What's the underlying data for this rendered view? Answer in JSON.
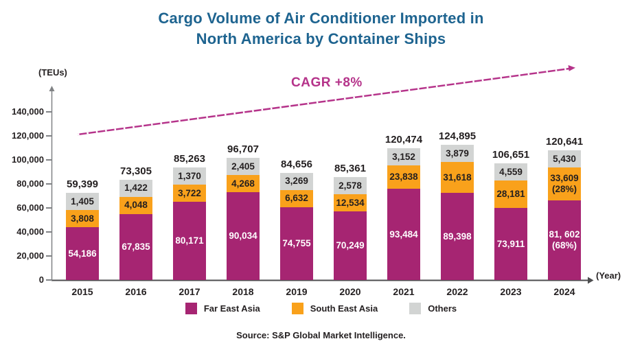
{
  "title": {
    "line1": "Cargo Volume of Air Conditioner Imported in",
    "line2": "North America by Container Ships"
  },
  "axes": {
    "y_unit_label": "(TEUs)",
    "x_unit_label": "(Year)"
  },
  "annotation": {
    "cagr_label": "CAGR +8%"
  },
  "source": "Source: S&P Global Market Intelligence.",
  "colors": {
    "title_blue": "#1E6490",
    "text_dark": "#231F20",
    "axis_gray": "#808285",
    "baseline_gray": "#4D4D4F",
    "cagr_magenta": "#B5338A",
    "far_east_asia": "#A62572",
    "south_east_asia": "#F9A11B",
    "others": "#D2D4D3"
  },
  "chart_data": {
    "type": "bar",
    "stacked": true,
    "title": "Cargo Volume of Air Conditioner Imported in North America by Container Ships",
    "xlabel": "Year",
    "ylabel": "TEUs",
    "ylim": [
      0,
      140000
    ],
    "grid": false,
    "legend_position": "bottom",
    "y_ticks": [
      "0",
      "20,000",
      "40,000",
      "60,000",
      "80,000",
      "100,000",
      "120,000",
      "140,000"
    ],
    "categories": [
      "2015",
      "2016",
      "2017",
      "2018",
      "2019",
      "2020",
      "2021",
      "2022",
      "2023",
      "2024"
    ],
    "series": [
      {
        "name": "Far East Asia",
        "color": "#A62572",
        "text_color": "#FFFFFF",
        "values": [
          54186,
          67835,
          80171,
          90034,
          74755,
          70249,
          93484,
          89398,
          73911,
          81602
        ],
        "labels": [
          "54,186",
          "67,835",
          "80,171",
          "90,034",
          "74,755",
          "70,249",
          "93,484",
          "89,398",
          "73,911",
          "81, 602\n(68%)"
        ]
      },
      {
        "name": "South East Asia",
        "color": "#F9A11B",
        "text_color": "#231F20",
        "values": [
          3808,
          4048,
          3722,
          4268,
          6632,
          12534,
          23838,
          31618,
          28181,
          33609
        ],
        "labels": [
          "3,808",
          "4,048",
          "3,722",
          "4,268",
          "6,632",
          "12,534",
          "23,838",
          "31,618",
          "28,181",
          "33,609\n(28%)"
        ]
      },
      {
        "name": "Others",
        "color": "#D2D4D3",
        "text_color": "#231F20",
        "values": [
          1405,
          1422,
          1370,
          2405,
          3269,
          2578,
          3152,
          3879,
          4559,
          5430
        ],
        "labels": [
          "1,405",
          "1,422",
          "1,370",
          "2,405",
          "3,269",
          "2,578",
          "3,152",
          "3,879",
          "4,559",
          "5,430"
        ]
      }
    ],
    "totals": [
      "59,399",
      "73,305",
      "85,263",
      "96,707",
      "84,656",
      "85,361",
      "120,474",
      "124,895",
      "106,651",
      "120,641"
    ],
    "annotation": "CAGR +8%"
  }
}
